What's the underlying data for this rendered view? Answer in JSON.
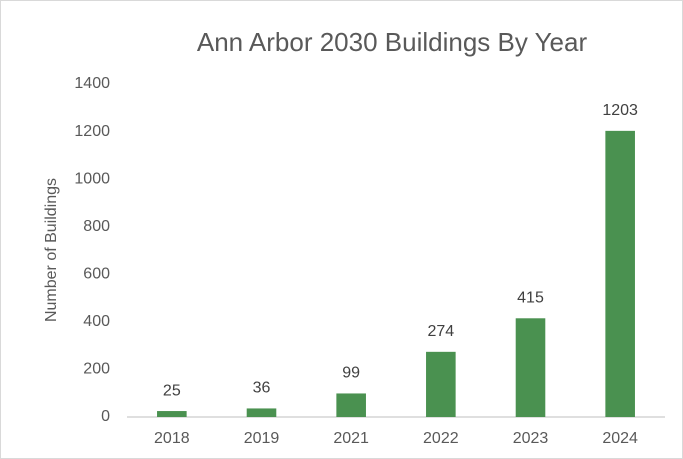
{
  "chart_data": {
    "type": "bar",
    "title": "Ann Arbor 2030 Buildings By Year",
    "y_label": "Number of Buildings",
    "categories": [
      "2018",
      "2019",
      "2021",
      "2022",
      "2023",
      "2024"
    ],
    "values": [
      25,
      36,
      99,
      274,
      415,
      1203
    ],
    "color": "#4a9150",
    "ylim": [
      0,
      1400
    ],
    "yticks": [
      0,
      200,
      400,
      600,
      800,
      1000,
      1200,
      1400
    ],
    "grid": false
  }
}
